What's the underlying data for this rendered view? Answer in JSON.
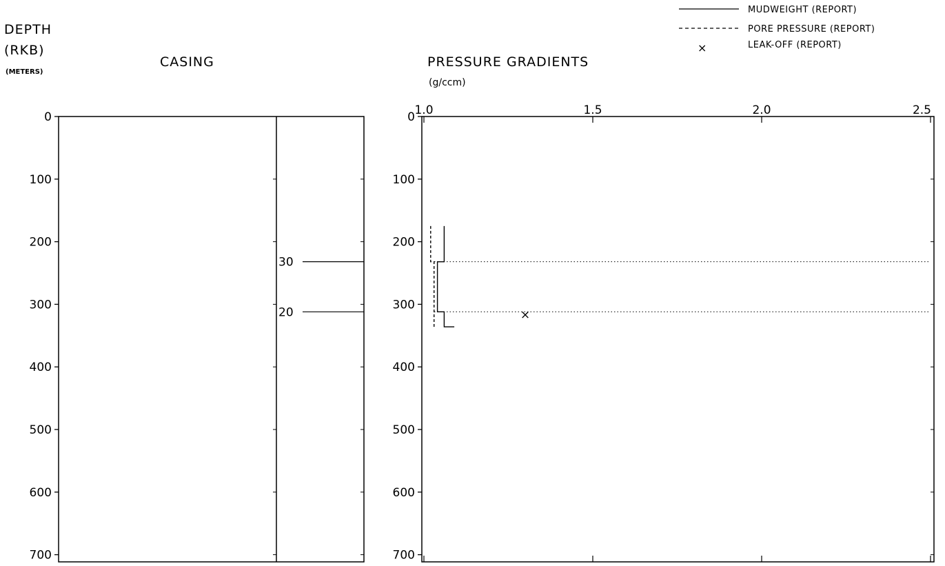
{
  "header": {
    "depth_line1": "DEPTH",
    "depth_line2": "(RKB)",
    "depth_line3": "(METERS)",
    "casing_title": "CASING",
    "pressure_title": "PRESSURE GRADIENTS",
    "pressure_unit": "(g/ccm)"
  },
  "legend": [
    {
      "label": "MUDWEIGHT (REPORT)",
      "style": "solid"
    },
    {
      "label": "PORE PRESSURE (REPORT)",
      "style": "dashed"
    },
    {
      "label": "LEAK-OFF (REPORT)",
      "style": "marker",
      "marker": "×"
    }
  ],
  "chart_data": [
    {
      "type": "line",
      "title": "CASING",
      "ylabel": "DEPTH (RKB) (METERS)",
      "ylim": [
        0,
        720
      ],
      "y_inverted": true,
      "yticks": [
        0,
        100,
        200,
        300,
        400,
        500,
        600,
        700
      ],
      "casing_strings": [
        {
          "label": "30",
          "depth": 232
        },
        {
          "label": "20",
          "depth": 312
        }
      ]
    },
    {
      "type": "line",
      "title": "PRESSURE GRADIENTS",
      "xlabel": "(g/ccm)",
      "xlim": [
        1.0,
        2.5
      ],
      "xticks": [
        1.0,
        1.5,
        2.0,
        2.5
      ],
      "ylim": [
        0,
        720
      ],
      "y_inverted": true,
      "yticks": [
        0,
        100,
        200,
        300,
        400,
        500,
        600,
        700
      ],
      "series": [
        {
          "name": "MUDWEIGHT (REPORT)",
          "style": "solid",
          "points": [
            [
              1.06,
              175
            ],
            [
              1.06,
              232
            ],
            [
              1.04,
              232
            ],
            [
              1.04,
              312
            ],
            [
              1.06,
              312
            ],
            [
              1.06,
              336
            ],
            [
              1.09,
              336
            ]
          ]
        },
        {
          "name": "PORE PRESSURE (REPORT)",
          "style": "dashed",
          "points": [
            [
              1.02,
              175
            ],
            [
              1.02,
              232
            ],
            [
              1.03,
              232
            ],
            [
              1.03,
              336
            ]
          ]
        },
        {
          "name": "LEAK-OFF (REPORT)",
          "style": "marker",
          "points": [
            [
              1.3,
              316
            ]
          ]
        }
      ],
      "casing_depth_lines": [
        232,
        312
      ]
    }
  ]
}
